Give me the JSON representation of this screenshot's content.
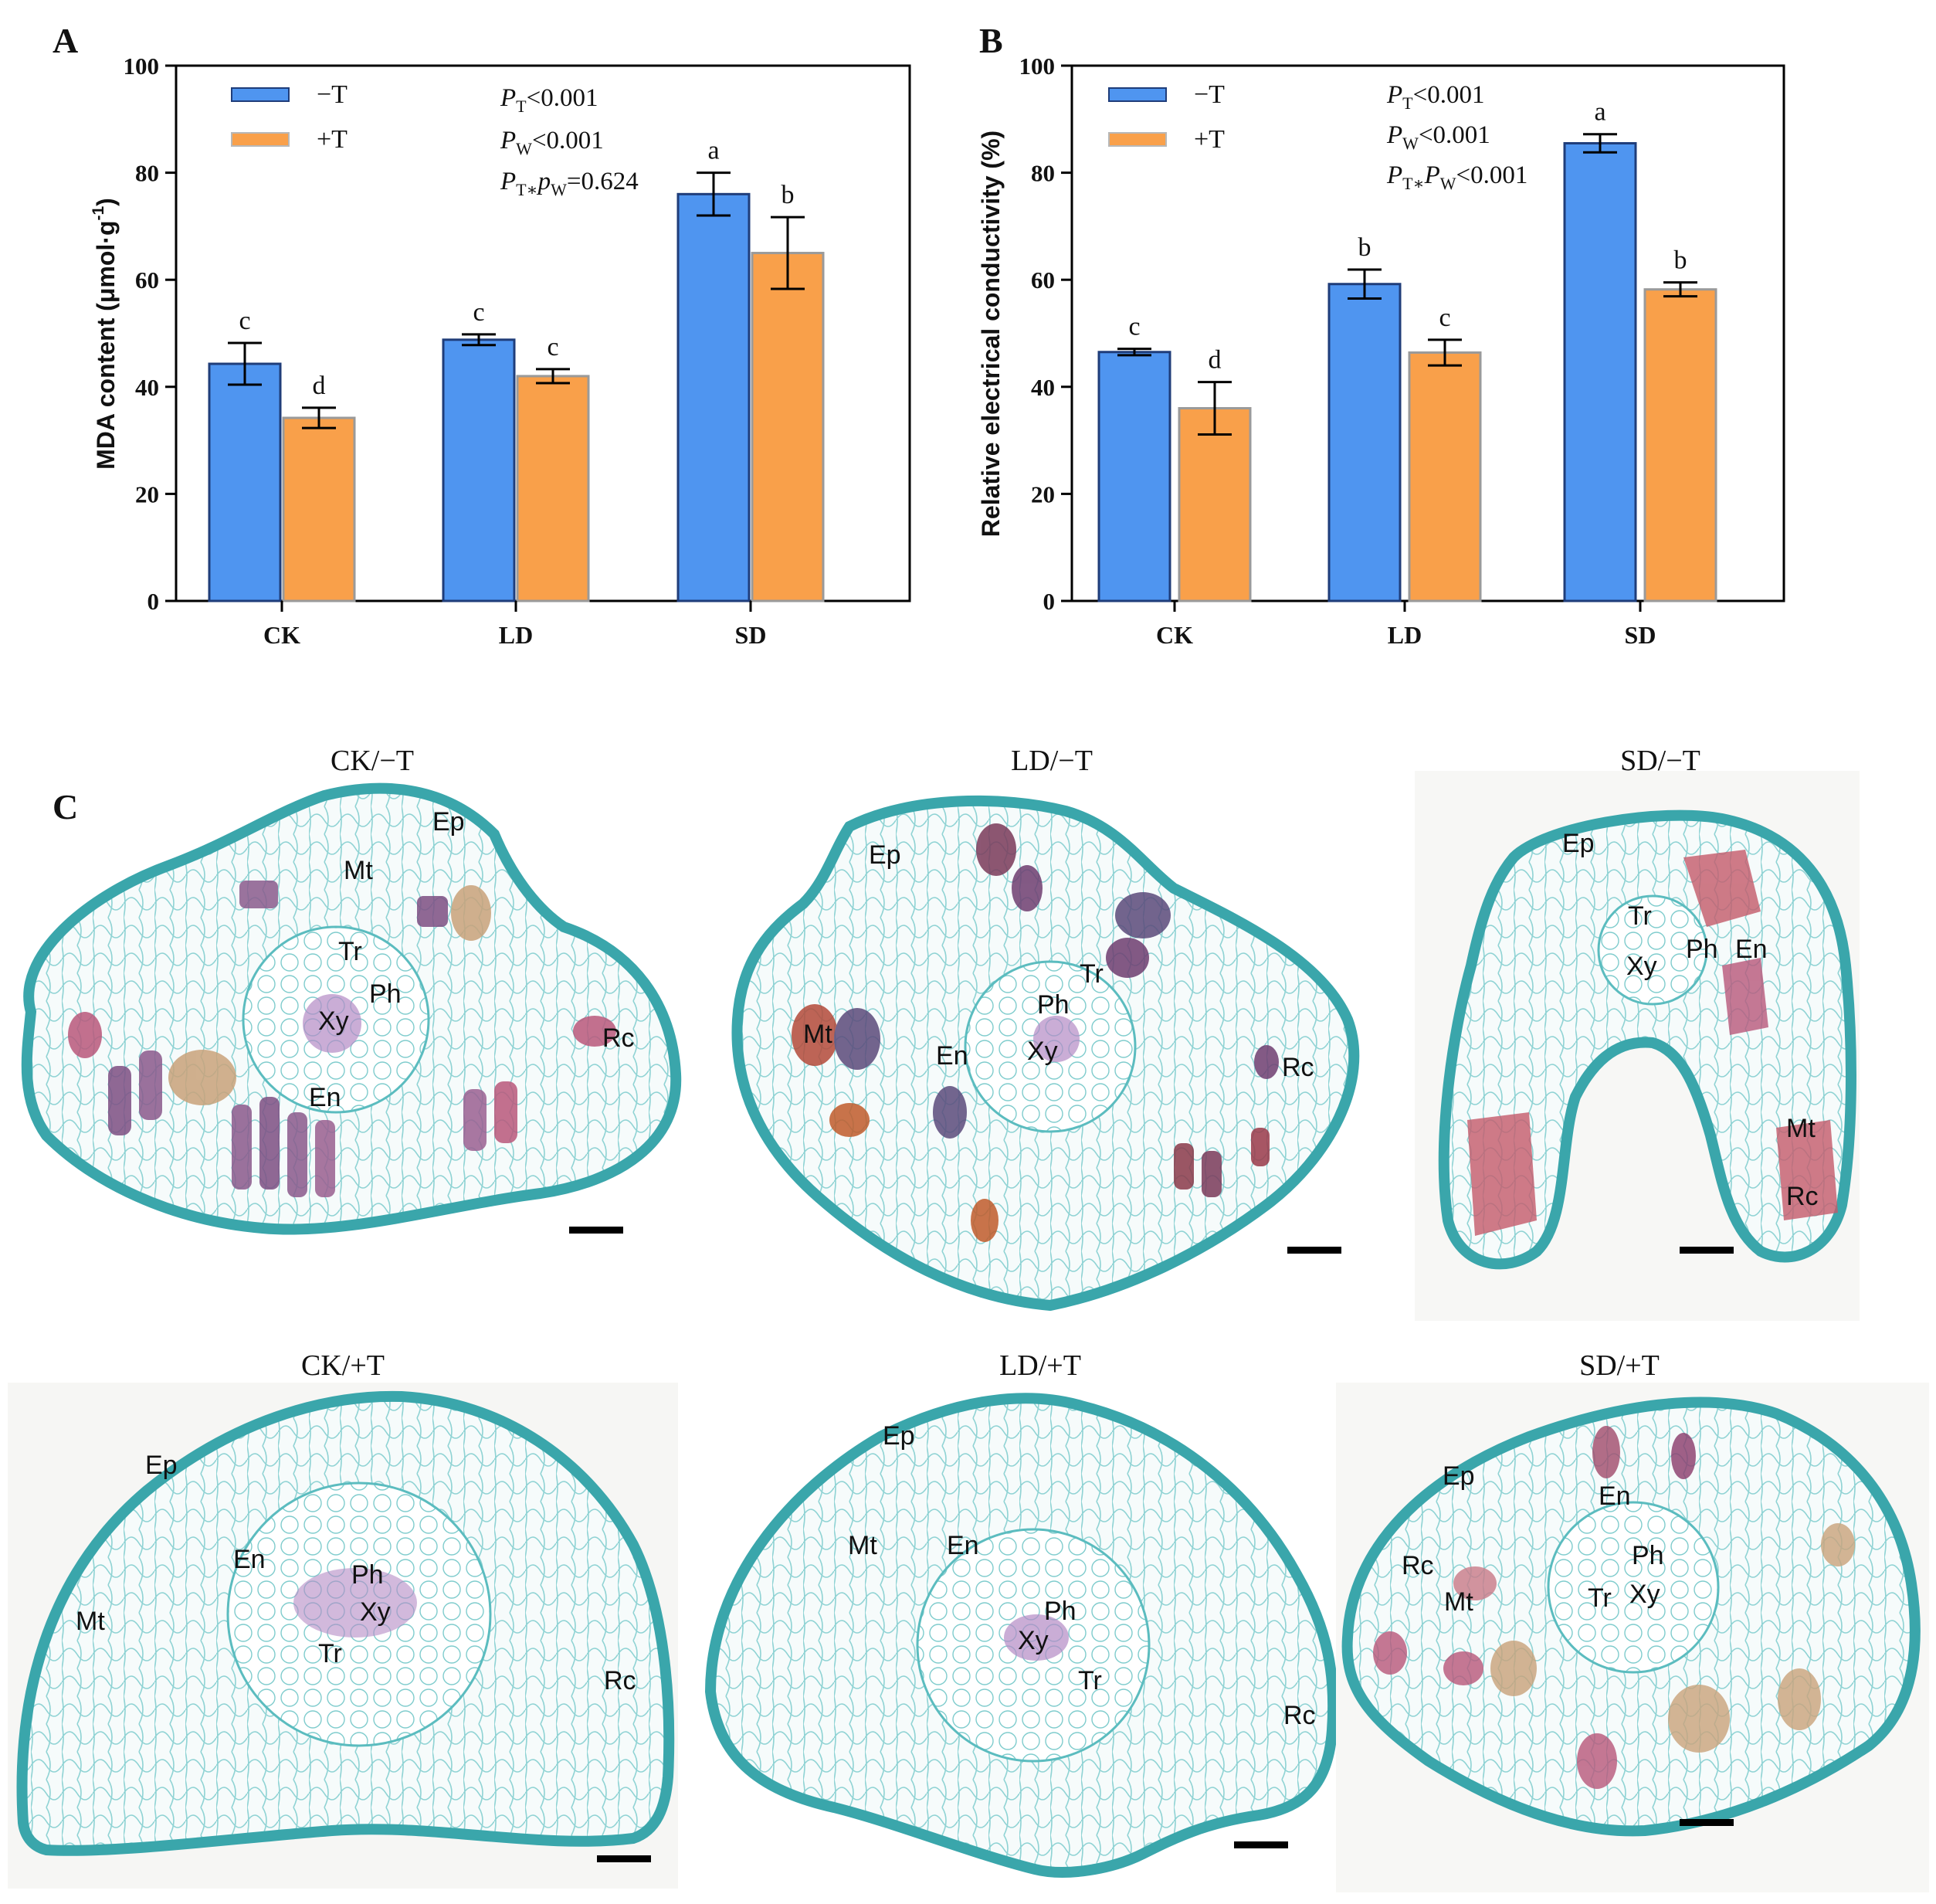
{
  "colors": {
    "minus_t": "#4f95f0",
    "plus_t": "#f9a04a",
    "stain": "#6cc4c6",
    "stain_dark": "#3aa6ab",
    "dark_cell": "#7a3a5a",
    "pink_cell": "#b8577a",
    "brown_cell": "#c9a27a"
  },
  "panel_labels": {
    "a": "A",
    "b": "B",
    "c": "C"
  },
  "chart_data": [
    {
      "type": "bar",
      "panel": "A",
      "ylabel": "MDA content  (μmol·g⁻¹)",
      "ylabel_main": "MDA content  (μmol·g",
      "ylabel_sup": "-1",
      "ylabel_end": ")",
      "ylim": [
        0,
        100
      ],
      "yticks": [
        "0",
        "20",
        "40",
        "60",
        "80",
        "100"
      ],
      "categories": [
        "CK",
        "LD",
        "SD"
      ],
      "series": [
        {
          "name": "−T",
          "values": [
            44.3,
            48.8,
            76.0
          ],
          "errors": [
            3.9,
            1.0,
            4.0
          ],
          "letters": [
            "c",
            "c",
            "a"
          ]
        },
        {
          "name": "+T",
          "values": [
            34.2,
            42.0,
            65.0
          ],
          "errors": [
            1.9,
            1.3,
            6.7
          ],
          "letters": [
            "d",
            "c",
            "b"
          ]
        }
      ],
      "stats": [
        {
          "p": "P",
          "sub": "T",
          "rel": "<0.001"
        },
        {
          "p": "P",
          "sub": "W",
          "rel": "<0.001"
        },
        {
          "p": "P",
          "sub": "T∗",
          "p2": "p",
          "sub2": "W",
          "rel": "=0.624"
        }
      ]
    },
    {
      "type": "bar",
      "panel": "B",
      "ylabel": "Relative electrical conductivity (%)",
      "ylim": [
        0,
        100
      ],
      "yticks": [
        "0",
        "20",
        "40",
        "60",
        "80",
        "100"
      ],
      "categories": [
        "CK",
        "LD",
        "SD"
      ],
      "series": [
        {
          "name": "−T",
          "values": [
            46.5,
            59.2,
            85.5
          ],
          "errors": [
            0.6,
            2.7,
            1.7
          ],
          "letters": [
            "c",
            "b",
            "a"
          ]
        },
        {
          "name": "+T",
          "values": [
            36.0,
            46.4,
            58.2
          ],
          "errors": [
            4.9,
            2.4,
            1.3
          ],
          "letters": [
            "d",
            "c",
            "b"
          ]
        }
      ],
      "stats": [
        {
          "p": "P",
          "sub": "T",
          "rel": "<0.001"
        },
        {
          "p": "P",
          "sub": "W",
          "rel": "<0.001"
        },
        {
          "p": "P",
          "sub": "T∗",
          "p2": "P",
          "sub2": "W",
          "rel": "<0.001"
        }
      ]
    }
  ],
  "micrographs": [
    {
      "title": "CK/−T",
      "labels": [
        "Ep",
        "Mt",
        "Tr",
        "Ph",
        "Xy",
        "En",
        "Rc"
      ]
    },
    {
      "title": "LD/−T",
      "labels": [
        "Ep",
        "Mt",
        "Tr",
        "Ph",
        "En",
        "Xy",
        "Rc"
      ]
    },
    {
      "title": "SD/−T",
      "labels": [
        "Ep",
        "Tr",
        "Xy",
        "Ph",
        "En",
        "Mt",
        "Rc"
      ]
    },
    {
      "title": "CK/+T",
      "labels": [
        "Ep",
        "En",
        "Ph",
        "Xy",
        "Mt",
        "Tr",
        "Rc"
      ]
    },
    {
      "title": "LD/+T",
      "labels": [
        "Ep",
        "Mt",
        "En",
        "Ph",
        "Xy",
        "Tr",
        "Rc"
      ]
    },
    {
      "title": "SD/+T",
      "labels": [
        "Ep",
        "En",
        "Rc",
        "Mt",
        "Ph",
        "Tr",
        "Xy"
      ]
    }
  ]
}
